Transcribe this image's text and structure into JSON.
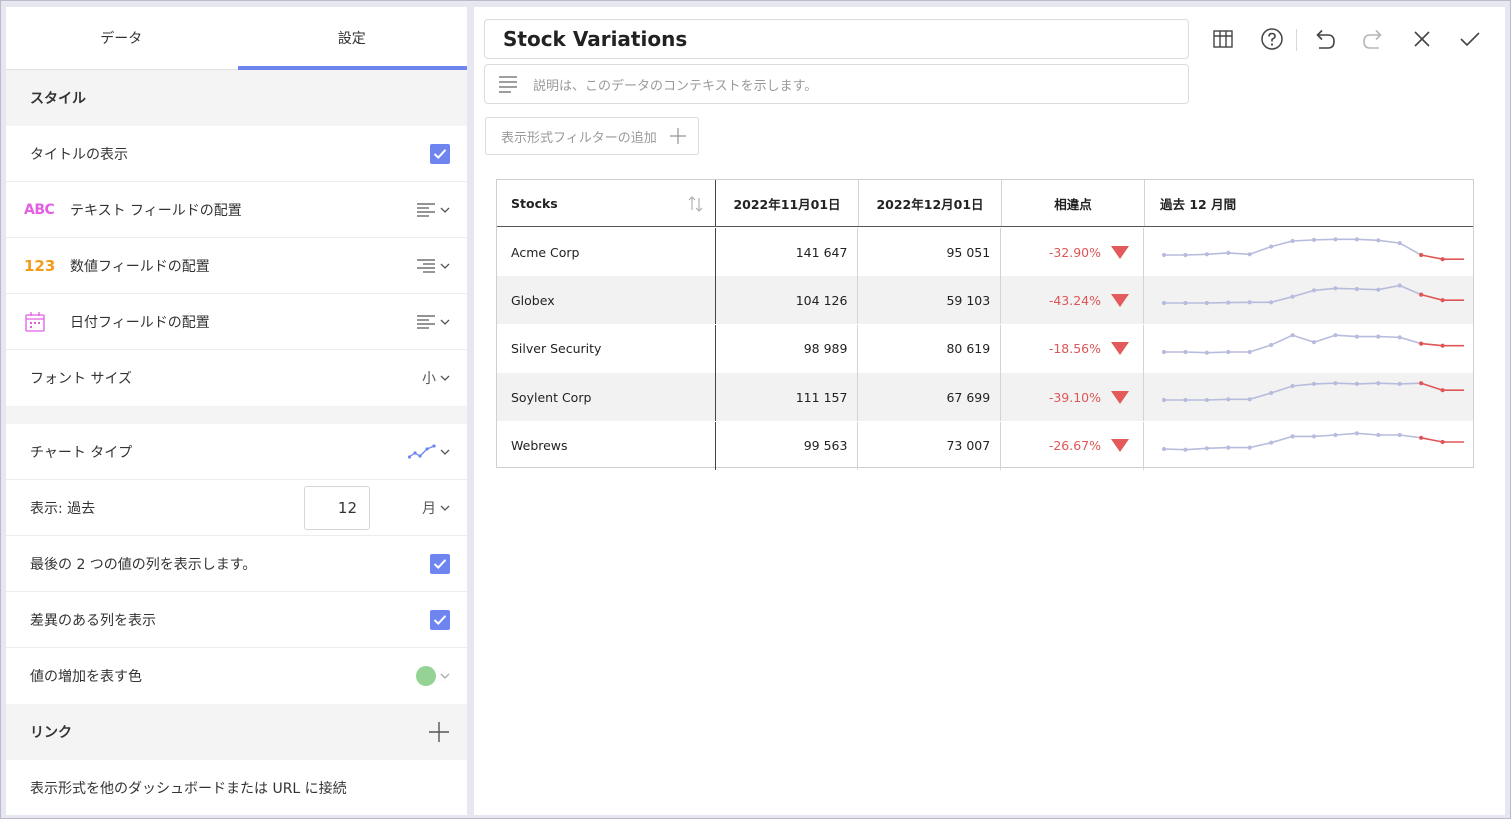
{
  "left_panel": {
    "tabs": [
      {
        "label": "データ",
        "active": false
      },
      {
        "label": "設定",
        "active": true
      }
    ],
    "style_section": "スタイル",
    "show_title_label": "タイトルの表示",
    "text_field_label": "テキスト フィールドの配置",
    "text_field_icon_text": "ABC",
    "number_field_label": "数値フィールドの配置",
    "number_field_icon_text": "123",
    "date_field_label": "日付フィールドの配置",
    "font_size_label": "フォント サイズ",
    "font_size_value": "小",
    "chart_type_label": "チャート タイプ",
    "display_past_label": "表示: 過去",
    "display_past_value": "12",
    "display_past_unit": "月",
    "show_last_two_label": "最後の 2 つの値の列を表示します。",
    "show_diff_label": "差異のある列を表示",
    "increase_color_label": "値の増加を表す色",
    "increase_color": "#95d395",
    "link_section": "リンク",
    "link_desc": "表示形式を他のダッシュボードまたは URL に接続"
  },
  "header": {
    "title": "Stock Variations",
    "description_placeholder": "説明は、このデータのコンテキストを示します。",
    "filter_button_label": "表示形式フィルターの追加"
  },
  "table": {
    "columns": [
      "Stocks",
      "2022年11月01日",
      "2022年12月01日",
      "相違点",
      "過去 12 月間"
    ],
    "rows": [
      {
        "name": "Acme Corp",
        "v1": "141 647",
        "v2": "95 051",
        "diff": "-32.90%",
        "trend": [
          0.0,
          0.0,
          0.05,
          0.15,
          0.05,
          0.6,
          1.0,
          1.08,
          1.12,
          1.12,
          1.05,
          0.85,
          0.0,
          -0.3,
          -0.3
        ]
      },
      {
        "name": "Globex",
        "v1": "104 126",
        "v2": "59 103",
        "diff": "-43.24%",
        "trend": [
          0.0,
          0.0,
          0.0,
          0.03,
          0.05,
          0.05,
          0.45,
          0.9,
          1.05,
          1.0,
          0.95,
          1.25,
          0.6,
          0.2,
          0.2
        ]
      },
      {
        "name": "Silver Security",
        "v1": "98 989",
        "v2": "80 619",
        "diff": "-18.56%",
        "trend": [
          0.0,
          0.0,
          -0.05,
          0.0,
          0.0,
          0.5,
          1.2,
          0.7,
          1.2,
          1.1,
          1.1,
          1.05,
          0.6,
          0.45,
          0.45
        ]
      },
      {
        "name": "Soylent Corp",
        "v1": "111 157",
        "v2": "67 699",
        "diff": "-39.10%",
        "trend": [
          0.0,
          0.0,
          0.0,
          0.05,
          0.05,
          0.5,
          1.0,
          1.15,
          1.2,
          1.15,
          1.2,
          1.15,
          1.2,
          0.7,
          0.7
        ]
      },
      {
        "name": "Webrews",
        "v1": "99 563",
        "v2": "73 007",
        "diff": "-26.67%",
        "trend": [
          0.0,
          -0.05,
          0.05,
          0.1,
          0.1,
          0.45,
          0.9,
          0.9,
          1.0,
          1.12,
          1.0,
          1.0,
          0.8,
          0.5,
          0.5
        ]
      }
    ]
  },
  "colors": {
    "accent": "#6e85ef",
    "spark_line": "#b8bcdc",
    "spark_highlight": "#e05656",
    "negative": "#e05656"
  }
}
